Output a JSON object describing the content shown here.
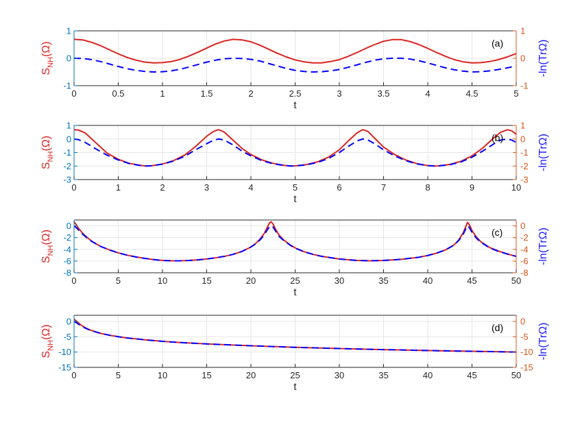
{
  "figure": {
    "xlabel": "t"
  },
  "colors": {
    "left_axis": "#d9231f",
    "left_ticks": "#0072bd",
    "right_axis": "#d95319",
    "right_label": "#1a1aff",
    "dashed": "#0000ff",
    "grid": "#e6e6e6"
  },
  "chart_data": [
    {
      "panel_label": "(a)",
      "type": "line",
      "grid": true,
      "xlim": [
        0,
        5
      ],
      "ylim": [
        -1,
        1
      ],
      "xticks": [
        "0",
        "0.5",
        "1",
        "1.5",
        "2",
        "2.5",
        "3",
        "3.5",
        "4",
        "4.5",
        "5"
      ],
      "xtick_values": [
        0,
        0.5,
        1,
        1.5,
        2,
        2.5,
        3,
        3.5,
        4,
        4.5,
        5
      ],
      "yticks_left": [
        "-1",
        "0",
        "1"
      ],
      "yticks_right": [
        "-1",
        "0",
        "1"
      ],
      "ytick_values": [
        -1,
        0,
        1
      ],
      "ylabel_left": {
        "main": "S",
        "sub": "NH",
        "rest": "(Ω)"
      },
      "ylabel_right": "-ln(TrΩ)",
      "series": [
        {
          "style": "solid",
          "x": [
            0,
            0.1,
            0.2,
            0.3,
            0.4,
            0.5,
            0.6,
            0.7,
            0.8,
            0.9,
            1.0,
            1.1,
            1.2,
            1.3,
            1.4,
            1.5,
            1.6,
            1.7,
            1.8,
            1.9,
            2.0,
            2.1,
            2.2,
            2.3,
            2.4,
            2.5,
            2.6,
            2.7,
            2.8,
            2.9,
            3.0,
            3.1,
            3.2,
            3.3,
            3.4,
            3.5,
            3.6,
            3.7,
            3.8,
            3.9,
            4.0,
            4.1,
            4.2,
            4.3,
            4.4,
            4.5,
            4.6,
            4.7,
            4.8,
            4.9,
            5.0
          ],
          "y": [
            0.69,
            0.67,
            0.58,
            0.46,
            0.31,
            0.16,
            0.03,
            -0.07,
            -0.14,
            -0.17,
            -0.16,
            -0.12,
            -0.04,
            0.08,
            0.22,
            0.37,
            0.52,
            0.63,
            0.69,
            0.67,
            0.6,
            0.48,
            0.33,
            0.18,
            0.05,
            -0.06,
            -0.13,
            -0.17,
            -0.17,
            -0.12,
            -0.05,
            0.07,
            0.21,
            0.36,
            0.5,
            0.62,
            0.68,
            0.68,
            0.61,
            0.5,
            0.36,
            0.21,
            0.07,
            -0.05,
            -0.13,
            -0.17,
            -0.16,
            -0.12,
            -0.05,
            0.05,
            0.17
          ]
        },
        {
          "style": "dashed",
          "x": [
            0,
            0.1,
            0.2,
            0.3,
            0.4,
            0.5,
            0.6,
            0.7,
            0.8,
            0.9,
            1.0,
            1.1,
            1.2,
            1.3,
            1.4,
            1.5,
            1.6,
            1.7,
            1.8,
            1.9,
            2.0,
            2.1,
            2.2,
            2.3,
            2.4,
            2.5,
            2.6,
            2.7,
            2.8,
            2.9,
            3.0,
            3.1,
            3.2,
            3.3,
            3.4,
            3.5,
            3.6,
            3.7,
            3.8,
            3.9,
            4.0,
            4.1,
            4.2,
            4.3,
            4.4,
            4.5,
            4.6,
            4.7,
            4.8,
            4.9,
            5.0
          ],
          "y": [
            0.0,
            -0.01,
            -0.05,
            -0.12,
            -0.21,
            -0.3,
            -0.38,
            -0.44,
            -0.48,
            -0.5,
            -0.49,
            -0.46,
            -0.4,
            -0.32,
            -0.23,
            -0.14,
            -0.07,
            -0.02,
            0.0,
            -0.01,
            -0.04,
            -0.1,
            -0.19,
            -0.28,
            -0.37,
            -0.44,
            -0.48,
            -0.5,
            -0.49,
            -0.46,
            -0.41,
            -0.33,
            -0.24,
            -0.15,
            -0.07,
            -0.02,
            0.0,
            0.0,
            -0.03,
            -0.09,
            -0.17,
            -0.26,
            -0.35,
            -0.42,
            -0.47,
            -0.5,
            -0.49,
            -0.46,
            -0.41,
            -0.35,
            -0.28
          ]
        }
      ]
    },
    {
      "panel_label": "(b)",
      "type": "line",
      "grid": true,
      "xlim": [
        0,
        10
      ],
      "ylim": [
        -3,
        1
      ],
      "xticks": [
        "0",
        "1",
        "2",
        "3",
        "4",
        "5",
        "6",
        "7",
        "8",
        "9",
        "10"
      ],
      "xtick_values": [
        0,
        1,
        2,
        3,
        4,
        5,
        6,
        7,
        8,
        9,
        10
      ],
      "yticks_left": [
        "-3",
        "-2",
        "-1",
        "0",
        "1"
      ],
      "yticks_right": [
        "-3",
        "-2",
        "-1",
        "0",
        "1"
      ],
      "ytick_values": [
        -3,
        -2,
        -1,
        0,
        1
      ],
      "ylabel_left": {
        "main": "S",
        "sub": "NH",
        "rest": "(Ω)"
      },
      "ylabel_right": "-ln(TrΩ)",
      "series": [
        {
          "style": "solid",
          "x": [
            0,
            0.1,
            0.25,
            0.5,
            0.75,
            1.0,
            1.25,
            1.5,
            1.63,
            1.75,
            2.0,
            2.25,
            2.5,
            2.75,
            3.0,
            3.15,
            3.27,
            3.4,
            3.6,
            3.8,
            4.0,
            4.25,
            4.5,
            4.75,
            4.9,
            5.0,
            5.25,
            5.5,
            5.75,
            6.0,
            6.2,
            6.4,
            6.53,
            6.65,
            6.8,
            7.0,
            7.25,
            7.5,
            7.75,
            8.0,
            8.16,
            8.25,
            8.5,
            8.75,
            9.0,
            9.25,
            9.5,
            9.65,
            9.8,
            9.9,
            10.0
          ],
          "y": [
            0.69,
            0.66,
            0.45,
            -0.3,
            -1.05,
            -1.5,
            -1.8,
            -1.95,
            -2.0,
            -1.98,
            -1.85,
            -1.6,
            -1.2,
            -0.55,
            0.2,
            0.55,
            0.69,
            0.5,
            -0.1,
            -0.7,
            -1.15,
            -1.55,
            -1.8,
            -1.95,
            -2.0,
            -1.99,
            -1.9,
            -1.7,
            -1.35,
            -0.8,
            -0.15,
            0.45,
            0.69,
            0.55,
            0.05,
            -0.6,
            -1.15,
            -1.55,
            -1.82,
            -1.97,
            -2.0,
            -1.99,
            -1.88,
            -1.65,
            -1.25,
            -0.65,
            0.1,
            0.5,
            0.68,
            0.6,
            0.35
          ]
        },
        {
          "style": "dashed",
          "x": [
            0,
            0.1,
            0.25,
            0.5,
            0.75,
            1.0,
            1.25,
            1.5,
            1.63,
            1.75,
            2.0,
            2.25,
            2.5,
            2.75,
            3.0,
            3.15,
            3.27,
            3.4,
            3.6,
            3.8,
            4.0,
            4.25,
            4.5,
            4.75,
            4.9,
            5.0,
            5.25,
            5.5,
            5.75,
            6.0,
            6.2,
            6.4,
            6.53,
            6.65,
            6.8,
            7.0,
            7.25,
            7.5,
            7.75,
            8.0,
            8.16,
            8.25,
            8.5,
            8.75,
            9.0,
            9.25,
            9.5,
            9.65,
            9.8,
            9.9,
            10.0
          ],
          "y": [
            0.0,
            -0.05,
            -0.25,
            -0.75,
            -1.2,
            -1.55,
            -1.82,
            -1.96,
            -2.0,
            -1.98,
            -1.86,
            -1.63,
            -1.28,
            -0.8,
            -0.35,
            -0.1,
            0.0,
            -0.08,
            -0.45,
            -0.9,
            -1.25,
            -1.6,
            -1.83,
            -1.96,
            -2.0,
            -1.99,
            -1.91,
            -1.74,
            -1.45,
            -1.0,
            -0.55,
            -0.15,
            0.0,
            -0.08,
            -0.35,
            -0.8,
            -1.25,
            -1.6,
            -1.84,
            -1.97,
            -2.0,
            -1.99,
            -1.9,
            -1.7,
            -1.35,
            -0.88,
            -0.35,
            -0.08,
            0.0,
            -0.08,
            -0.25
          ]
        }
      ]
    },
    {
      "panel_label": "(c)",
      "type": "line",
      "grid": true,
      "xlim": [
        0,
        50
      ],
      "ylim": [
        -8,
        1
      ],
      "xticks": [
        "0",
        "5",
        "10",
        "15",
        "20",
        "25",
        "30",
        "35",
        "40",
        "45",
        "50"
      ],
      "xtick_values": [
        0,
        5,
        10,
        15,
        20,
        25,
        30,
        35,
        40,
        45,
        50
      ],
      "yticks_left": [
        "-8",
        "-6",
        "-4",
        "-2",
        "0"
      ],
      "yticks_right": [
        "-8",
        "-6",
        "-4",
        "-2",
        "0"
      ],
      "ytick_values": [
        -8,
        -6,
        -4,
        -2,
        0
      ],
      "ylabel_left": {
        "main": "S",
        "sub": "NH",
        "rest": "(Ω)"
      },
      "ylabel_right": "-ln(TrΩ)",
      "series": [
        {
          "style": "solid",
          "x": [
            0,
            0.25,
            0.5,
            1,
            1.5,
            2,
            3,
            4,
            5,
            6,
            7,
            8,
            9,
            10,
            11,
            12,
            13,
            14,
            15,
            16,
            17,
            18,
            19,
            20,
            20.5,
            21,
            21.5,
            21.8,
            22.1,
            22.3,
            22.5,
            22.8,
            23.2,
            23.7,
            24.5,
            25,
            26,
            27,
            28,
            30,
            32,
            33.5,
            35,
            37,
            39,
            40,
            41,
            42,
            43,
            43.5,
            44,
            44.3,
            44.5,
            44.7,
            45,
            45.5,
            46,
            47,
            48,
            49,
            50
          ],
          "y": [
            0.69,
            0.2,
            -0.4,
            -1.3,
            -2.0,
            -2.6,
            -3.5,
            -4.1,
            -4.6,
            -5.0,
            -5.3,
            -5.55,
            -5.75,
            -5.9,
            -5.95,
            -5.95,
            -5.9,
            -5.8,
            -5.65,
            -5.45,
            -5.2,
            -4.85,
            -4.35,
            -3.6,
            -3.05,
            -2.3,
            -1.3,
            -0.4,
            0.5,
            0.69,
            0.3,
            -0.6,
            -1.6,
            -2.4,
            -3.3,
            -3.75,
            -4.4,
            -4.85,
            -5.2,
            -5.65,
            -5.9,
            -5.95,
            -5.9,
            -5.7,
            -5.35,
            -5.05,
            -4.65,
            -4.1,
            -3.2,
            -2.4,
            -1.2,
            -0.1,
            0.6,
            0.2,
            -0.8,
            -1.9,
            -2.7,
            -3.7,
            -4.3,
            -4.8,
            -5.2
          ]
        },
        {
          "style": "dashed",
          "x": [
            0,
            0.25,
            0.5,
            1,
            1.5,
            2,
            3,
            4,
            5,
            6,
            7,
            8,
            9,
            10,
            11,
            12,
            13,
            14,
            15,
            16,
            17,
            18,
            19,
            20,
            20.5,
            21,
            21.5,
            21.8,
            22.1,
            22.3,
            22.5,
            22.8,
            23.2,
            23.7,
            24.5,
            25,
            26,
            27,
            28,
            30,
            32,
            33.5,
            35,
            37,
            39,
            40,
            41,
            42,
            43,
            43.5,
            44,
            44.3,
            44.5,
            44.7,
            45,
            45.5,
            46,
            47,
            48,
            49,
            50
          ],
          "y": [
            0.0,
            -0.3,
            -0.7,
            -1.45,
            -2.1,
            -2.65,
            -3.5,
            -4.1,
            -4.6,
            -5.0,
            -5.3,
            -5.55,
            -5.75,
            -5.9,
            -5.95,
            -5.95,
            -5.9,
            -5.8,
            -5.65,
            -5.45,
            -5.2,
            -4.85,
            -4.35,
            -3.6,
            -3.1,
            -2.45,
            -1.55,
            -0.8,
            -0.15,
            0.0,
            -0.2,
            -0.9,
            -1.8,
            -2.5,
            -3.35,
            -3.8,
            -4.4,
            -4.85,
            -5.2,
            -5.65,
            -5.9,
            -5.95,
            -5.9,
            -5.7,
            -5.35,
            -5.05,
            -4.65,
            -4.1,
            -3.25,
            -2.5,
            -1.45,
            -0.5,
            0.0,
            -0.3,
            -1.1,
            -2.1,
            -2.8,
            -3.75,
            -4.35,
            -4.8,
            -5.2
          ]
        }
      ]
    },
    {
      "panel_label": "(d)",
      "type": "line",
      "grid": true,
      "xlim": [
        0,
        50
      ],
      "ylim": [
        -15,
        2
      ],
      "xticks": [
        "0",
        "5",
        "10",
        "15",
        "20",
        "25",
        "30",
        "35",
        "40",
        "45",
        "50"
      ],
      "xtick_values": [
        0,
        5,
        10,
        15,
        20,
        25,
        30,
        35,
        40,
        45,
        50
      ],
      "yticks_left": [
        "-15",
        "-10",
        "-5",
        "0"
      ],
      "yticks_right": [
        "-15",
        "-10",
        "-5",
        "0"
      ],
      "ytick_values": [
        -15,
        -10,
        -5,
        0
      ],
      "ylabel_left": {
        "main": "S",
        "sub": "NH",
        "rest": "(Ω)"
      },
      "ylabel_right": "-ln(TrΩ)",
      "series": [
        {
          "style": "solid",
          "x": [
            0,
            0.25,
            0.5,
            0.75,
            1,
            1.5,
            2,
            3,
            4,
            5,
            6,
            7,
            8,
            10,
            12,
            15,
            20,
            25,
            30,
            35,
            40,
            45,
            50
          ],
          "y": [
            0.69,
            0.2,
            -0.5,
            -1.1,
            -1.6,
            -2.4,
            -3.0,
            -3.9,
            -4.5,
            -5.0,
            -5.4,
            -5.7,
            -6.0,
            -6.5,
            -6.9,
            -7.35,
            -7.95,
            -8.45,
            -8.85,
            -9.2,
            -9.5,
            -9.75,
            -10.0
          ]
        },
        {
          "style": "dashed",
          "x": [
            0,
            0.25,
            0.5,
            0.75,
            1,
            1.5,
            2,
            3,
            4,
            5,
            6,
            7,
            8,
            10,
            12,
            15,
            20,
            25,
            30,
            35,
            40,
            45,
            50
          ],
          "y": [
            0.0,
            -0.4,
            -0.9,
            -1.35,
            -1.8,
            -2.5,
            -3.05,
            -3.9,
            -4.5,
            -5.0,
            -5.4,
            -5.7,
            -6.0,
            -6.5,
            -6.9,
            -7.35,
            -7.95,
            -8.45,
            -8.85,
            -9.2,
            -9.5,
            -9.75,
            -10.0
          ]
        }
      ]
    }
  ]
}
